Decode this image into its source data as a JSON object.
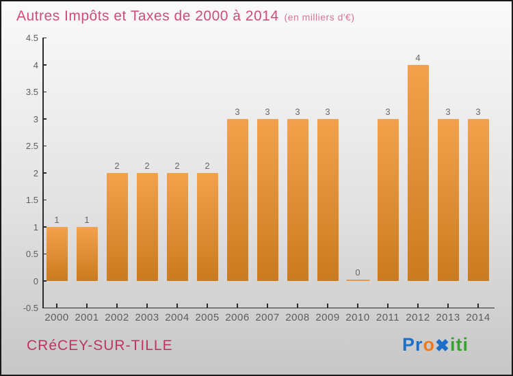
{
  "title": "Autres Impôts et Taxes de 2000 à 2014",
  "subtitle": "(en milliers d'€)",
  "footer": {
    "city": "CRéCEY-SUR-TILLE",
    "logo_name": "Proxiti",
    "logo_letters": [
      {
        "ch": "P",
        "color": "#1E6FC8"
      },
      {
        "ch": "r",
        "color": "#1E6FC8"
      },
      {
        "ch": "o",
        "color": "#F07818"
      },
      {
        "ch": "x",
        "color": "#1E6FC8",
        "style": "heavy-x"
      },
      {
        "ch": "i",
        "color": "#35A32C"
      },
      {
        "ch": "t",
        "color": "#35A32C"
      },
      {
        "ch": "i",
        "color": "#35A32C"
      }
    ]
  },
  "colors": {
    "title": "#CC4E74",
    "subtitle": "#D8738F",
    "city": "#BE3365",
    "axis": "#2b2b2b",
    "tick_label": "#5d5d5d",
    "value_label": "#666666"
  },
  "chart_data": {
    "type": "bar",
    "title": "Autres Impôts et Taxes de 2000 à 2014",
    "subtitle": "(en milliers d'€)",
    "categories": [
      "2000",
      "2001",
      "2002",
      "2003",
      "2004",
      "2005",
      "2006",
      "2007",
      "2008",
      "2009",
      "2010",
      "2011",
      "2012",
      "2013",
      "2014"
    ],
    "values": [
      1,
      1,
      2,
      2,
      2,
      2,
      3,
      3,
      3,
      3,
      0,
      3,
      4,
      3,
      3
    ],
    "xlabel": "",
    "ylabel": "",
    "ylim": [
      -0.5,
      4.5
    ],
    "ytick_step": 0.5,
    "grid": false,
    "legend": false,
    "value_labels": true,
    "bar_gradient_top": "#F3A24C",
    "bar_gradient_bottom": "#CC7A1E",
    "zero_line_color": "#E9964B"
  }
}
